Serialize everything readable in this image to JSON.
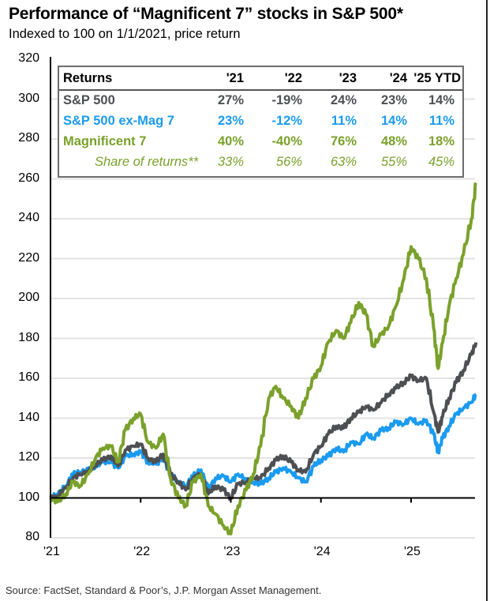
{
  "header": {
    "title": "Performance of “Magnificent 7” stocks in S&P 500*",
    "subtitle": "Indexed to 100 on 1/1/2021, price return"
  },
  "source": "Source: FactSet, Standard & Poor’s, J.P. Morgan Asset Management.",
  "colors": {
    "sp500": "#4d4f53",
    "ex_mag7": "#1a9bf0",
    "mag7": "#7aa12b",
    "grid": "#e3e3e3",
    "axis": "#000000",
    "table_border": "#6d6d6d"
  },
  "returns_table": {
    "header": [
      "Returns",
      "'21",
      "'22",
      "'23",
      "'24",
      "'25 YTD"
    ],
    "rows": [
      {
        "label": "S&P 500",
        "values": [
          "27%",
          "-19%",
          "24%",
          "23%",
          "14%"
        ],
        "color_key": "sp500",
        "style": "bold"
      },
      {
        "label": "S&P 500 ex-Mag 7",
        "values": [
          "23%",
          "-12%",
          "11%",
          "14%",
          "11%"
        ],
        "color_key": "ex_mag7",
        "style": "bold"
      },
      {
        "label": "Magnificent 7",
        "values": [
          "40%",
          "-40%",
          "76%",
          "48%",
          "18%"
        ],
        "color_key": "mag7",
        "style": "bold"
      },
      {
        "label": "Share of returns**",
        "values": [
          "33%",
          "56%",
          "63%",
          "55%",
          "45%"
        ],
        "color_key": "mag7",
        "style": "italic"
      }
    ]
  },
  "chart_data": {
    "type": "line",
    "title": "Performance of “Magnificent 7” stocks in S&P 500*",
    "subtitle": "Indexed to 100 on 1/1/2021, price return",
    "xlabel": "",
    "ylabel": "",
    "xlim": [
      2021.0,
      2025.72
    ],
    "ylim": [
      80,
      320
    ],
    "yticks": [
      80,
      100,
      120,
      140,
      160,
      180,
      200,
      220,
      240,
      260,
      280,
      300,
      320
    ],
    "ytick_labels": [
      "80",
      "100",
      "120",
      "140",
      "160",
      "180",
      "200",
      "220",
      "240",
      "260",
      "280",
      "300",
      "320"
    ],
    "xticks": [
      2021,
      2022,
      2023,
      2024,
      2025
    ],
    "xtick_labels": [
      "'21",
      "'22",
      "'23",
      "'24",
      "'25"
    ],
    "grid": "horizontal",
    "baseline": 100,
    "legend": "table top",
    "series": [
      {
        "name": "S&P 500",
        "color_key": "sp500",
        "x": [
          2021.0,
          2021.08,
          2021.17,
          2021.25,
          2021.33,
          2021.42,
          2021.5,
          2021.58,
          2021.67,
          2021.75,
          2021.83,
          2021.92,
          2022.0,
          2022.08,
          2022.17,
          2022.25,
          2022.33,
          2022.42,
          2022.5,
          2022.58,
          2022.67,
          2022.75,
          2022.83,
          2022.92,
          2023.0,
          2023.08,
          2023.17,
          2023.25,
          2023.33,
          2023.42,
          2023.5,
          2023.58,
          2023.67,
          2023.75,
          2023.83,
          2023.92,
          2024.0,
          2024.08,
          2024.17,
          2024.25,
          2024.33,
          2024.42,
          2024.5,
          2024.58,
          2024.67,
          2024.75,
          2024.83,
          2024.92,
          2025.0,
          2025.08,
          2025.17,
          2025.25,
          2025.3,
          2025.35,
          2025.42,
          2025.5,
          2025.58,
          2025.67,
          2025.72
        ],
        "values": [
          100,
          101,
          105,
          110,
          112,
          113,
          117,
          119,
          121,
          116,
          124,
          126,
          127,
          120,
          118,
          122,
          112,
          108,
          104,
          110,
          112,
          102,
          106,
          104,
          100,
          107,
          108,
          110,
          110,
          115,
          119,
          121,
          118,
          114,
          113,
          122,
          126,
          132,
          136,
          135,
          140,
          143,
          146,
          144,
          148,
          152,
          155,
          158,
          161,
          159,
          160,
          143,
          133,
          141,
          150,
          158,
          164,
          172,
          178
        ]
      },
      {
        "name": "S&P 500 ex-Mag 7",
        "color_key": "ex_mag7",
        "x": [
          2021.0,
          2021.08,
          2021.17,
          2021.25,
          2021.33,
          2021.42,
          2021.5,
          2021.58,
          2021.67,
          2021.75,
          2021.83,
          2021.92,
          2022.0,
          2022.08,
          2022.17,
          2022.25,
          2022.33,
          2022.42,
          2022.5,
          2022.58,
          2022.67,
          2022.75,
          2022.83,
          2022.92,
          2023.0,
          2023.08,
          2023.17,
          2023.25,
          2023.33,
          2023.42,
          2023.5,
          2023.58,
          2023.67,
          2023.75,
          2023.83,
          2023.92,
          2024.0,
          2024.08,
          2024.17,
          2024.25,
          2024.33,
          2024.42,
          2024.5,
          2024.58,
          2024.67,
          2024.75,
          2024.83,
          2024.92,
          2025.0,
          2025.08,
          2025.17,
          2025.25,
          2025.3,
          2025.35,
          2025.42,
          2025.5,
          2025.58,
          2025.67,
          2025.72
        ],
        "values": [
          100,
          102,
          106,
          112,
          113,
          114,
          116,
          118,
          118,
          115,
          121,
          122,
          123,
          118,
          117,
          120,
          112,
          108,
          106,
          111,
          114,
          104,
          110,
          111,
          108,
          112,
          109,
          108,
          107,
          110,
          113,
          115,
          113,
          110,
          108,
          116,
          119,
          121,
          125,
          123,
          128,
          127,
          132,
          130,
          134,
          135,
          138,
          137,
          140,
          137,
          139,
          132,
          123,
          130,
          136,
          142,
          145,
          148,
          152
        ]
      },
      {
        "name": "Magnificent 7",
        "color_key": "mag7",
        "x": [
          2021.0,
          2021.08,
          2021.17,
          2021.25,
          2021.33,
          2021.42,
          2021.5,
          2021.58,
          2021.67,
          2021.75,
          2021.83,
          2021.92,
          2022.0,
          2022.08,
          2022.17,
          2022.25,
          2022.33,
          2022.42,
          2022.5,
          2022.58,
          2022.67,
          2022.75,
          2022.83,
          2022.92,
          2023.0,
          2023.08,
          2023.17,
          2023.25,
          2023.33,
          2023.42,
          2023.5,
          2023.58,
          2023.67,
          2023.75,
          2023.83,
          2023.92,
          2024.0,
          2024.08,
          2024.17,
          2024.25,
          2024.33,
          2024.42,
          2024.5,
          2024.58,
          2024.67,
          2024.75,
          2024.83,
          2024.92,
          2025.0,
          2025.08,
          2025.17,
          2025.25,
          2025.3,
          2025.35,
          2025.42,
          2025.5,
          2025.58,
          2025.67,
          2025.72
        ],
        "values": [
          100,
          98,
          102,
          108,
          106,
          112,
          120,
          125,
          126,
          118,
          134,
          140,
          142,
          128,
          125,
          132,
          110,
          100,
          96,
          108,
          112,
          96,
          92,
          86,
          82,
          96,
          104,
          112,
          126,
          150,
          156,
          150,
          146,
          140,
          150,
          160,
          166,
          178,
          184,
          180,
          188,
          198,
          192,
          176,
          182,
          186,
          196,
          210,
          226,
          220,
          210,
          185,
          165,
          178,
          196,
          210,
          222,
          240,
          258
        ]
      }
    ]
  }
}
